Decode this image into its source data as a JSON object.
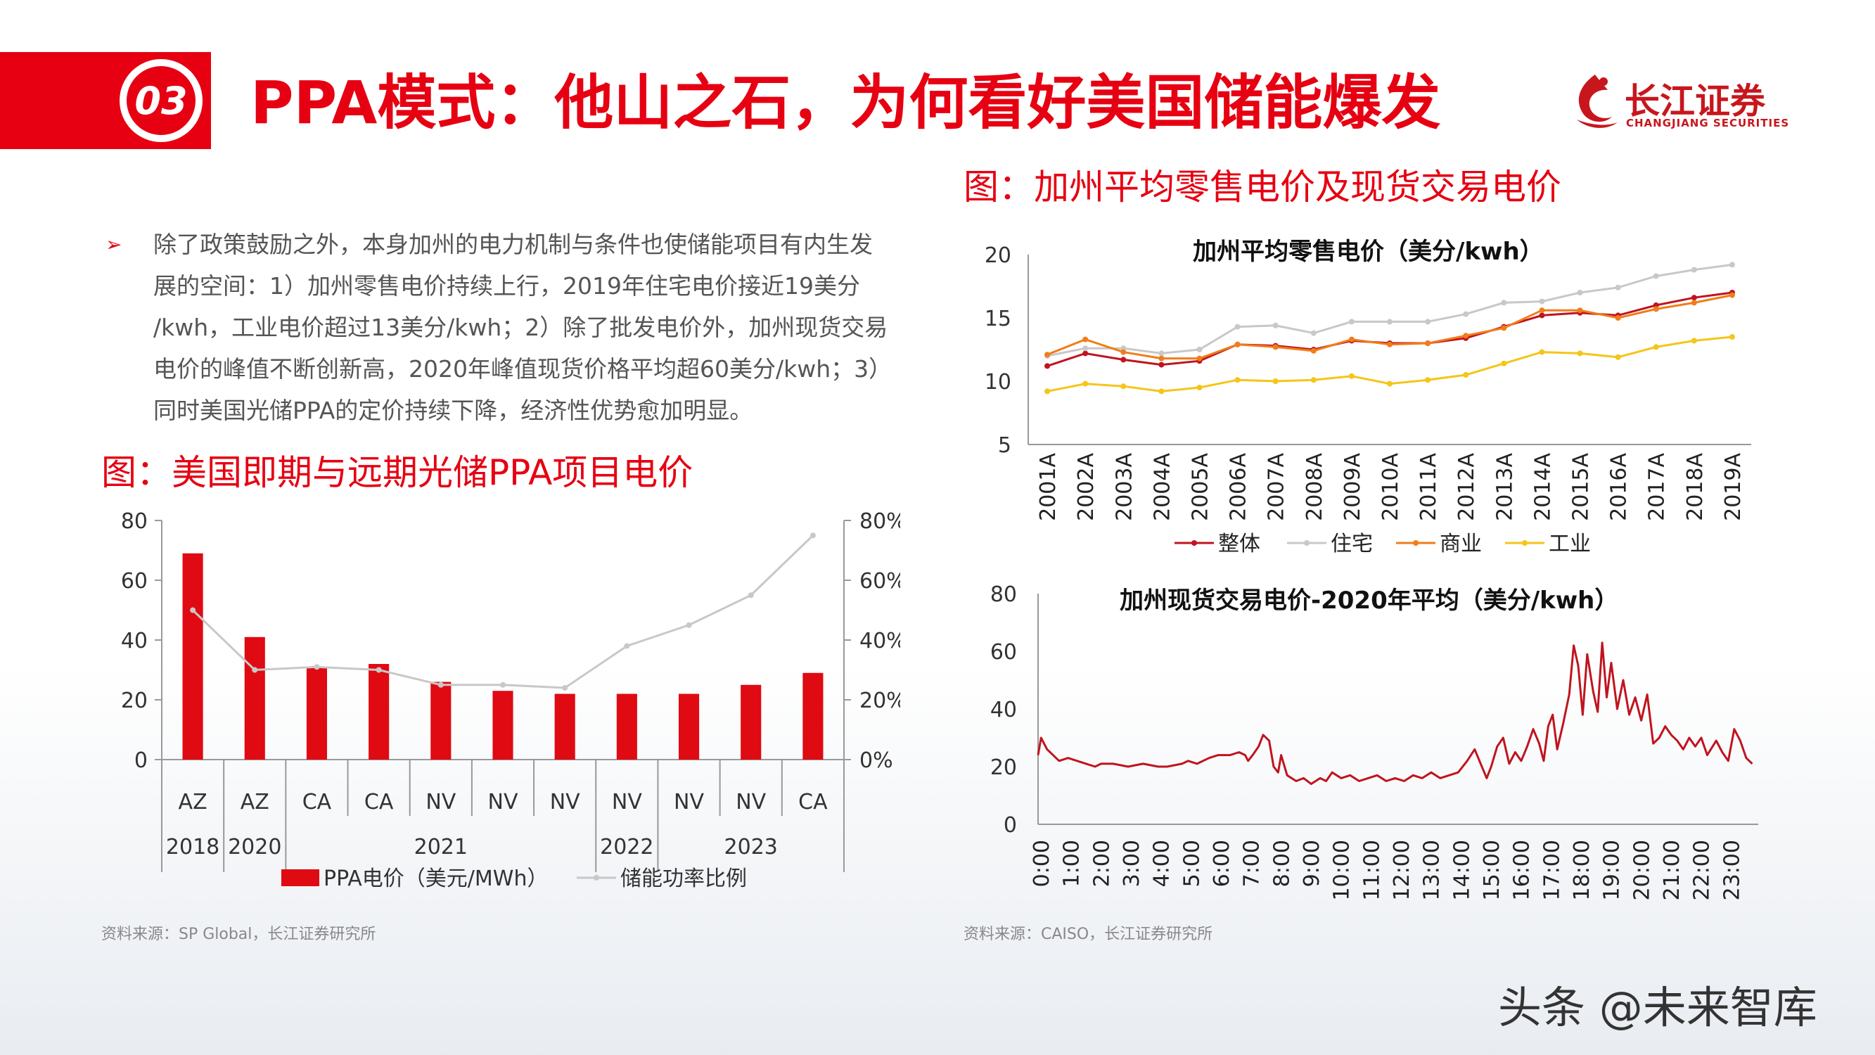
{
  "header": {
    "section_number": "03",
    "title": "PPA模式：他山之石，为何看好美国储能爆发"
  },
  "logo": {
    "name_cn": "长江证券",
    "name_en": "CHANGJIANG SECURITIES"
  },
  "bullet": {
    "lines": [
      "除了政策鼓励之外，本身加州的电力机制与条件也使储能项目有内生发",
      "展的空间：1）加州零售电价持续上行，2019年住宅电价接近19美分",
      "/kwh，工业电价超过13美分/kwh；2）除了批发电价外，加州现货交易",
      "电价的峰值不断创新高，2020年峰值现货价格平均超60美分/kwh；3）",
      "同时美国光储PPA的定价持续下降，经济性优势愈加明显。"
    ]
  },
  "figure_left": {
    "caption": "图：美国即期与远期光储PPA项目电价",
    "source": "资料来源：SP Global，长江证券研究所"
  },
  "figure_right_top": {
    "caption": "图：加州平均零售电价及现货交易电价"
  },
  "figure_right_bottom": {
    "source": "资料来源：CAISO，长江证券研究所"
  },
  "watermark": "头条 @未来智库",
  "colors": {
    "brand_red": "#e60012",
    "bar_red": "#e00a12",
    "line_grey": "#c8c8c8",
    "overall": "#c0141e",
    "residential": "#c8c8c8",
    "commercial": "#f07d1a",
    "industrial": "#f5c518",
    "spot": "#c0141e"
  },
  "chart_data": [
    {
      "type": "bar",
      "categories": [
        "AZ",
        "AZ",
        "CA",
        "CA",
        "NV",
        "NV",
        "NV",
        "NV",
        "NV",
        "NV",
        "CA"
      ],
      "year_groups": [
        {
          "label": "2018",
          "span": 1
        },
        {
          "label": "2020",
          "span": 1
        },
        {
          "label": "2021",
          "span": 5
        },
        {
          "label": "2022",
          "span": 1
        },
        {
          "label": "2023",
          "span": 3
        }
      ],
      "series": [
        {
          "name": "PPA电价（美元/MWh）",
          "type": "bar",
          "axis": "left",
          "values": [
            69,
            41,
            31,
            32,
            26,
            23,
            22,
            22,
            22,
            25,
            29
          ]
        },
        {
          "name": "储能功率比例",
          "type": "line",
          "axis": "right",
          "values": [
            50,
            30,
            31,
            30,
            25,
            25,
            24,
            38,
            45,
            55,
            75
          ]
        }
      ],
      "ylim": [
        0,
        80
      ],
      "yticks": [
        "0",
        "20",
        "40",
        "60",
        "80"
      ],
      "y2lim": [
        0,
        80
      ],
      "y2ticks": [
        "0%",
        "20%",
        "40%",
        "60%",
        "80%"
      ],
      "legend": "bottom"
    },
    {
      "type": "line",
      "title": "加州平均零售电价（美分/kwh）",
      "categories": [
        "2001A",
        "2002A",
        "2003A",
        "2004A",
        "2005A",
        "2006A",
        "2007A",
        "2008A",
        "2009A",
        "2010A",
        "2011A",
        "2012A",
        "2013A",
        "2014A",
        "2015A",
        "2016A",
        "2017A",
        "2018A",
        "2019A"
      ],
      "series": [
        {
          "name": "整体",
          "values": [
            11.2,
            12.2,
            11.7,
            11.3,
            11.6,
            12.9,
            12.8,
            12.5,
            13.2,
            13.0,
            13.0,
            13.4,
            14.3,
            15.2,
            15.4,
            15.2,
            16.0,
            16.6,
            17.0
          ]
        },
        {
          "name": "住宅",
          "values": [
            12.0,
            12.6,
            12.6,
            12.2,
            12.5,
            14.3,
            14.4,
            13.8,
            14.7,
            14.7,
            14.7,
            15.3,
            16.2,
            16.3,
            17.0,
            17.4,
            18.3,
            18.8,
            19.2
          ]
        },
        {
          "name": "商业",
          "values": [
            12.1,
            13.3,
            12.3,
            11.8,
            11.8,
            12.9,
            12.7,
            12.4,
            13.3,
            12.9,
            13.0,
            13.6,
            14.2,
            15.6,
            15.6,
            15.0,
            15.7,
            16.2,
            16.8
          ]
        },
        {
          "name": "工业",
          "values": [
            9.2,
            9.8,
            9.6,
            9.2,
            9.5,
            10.1,
            10.0,
            10.1,
            10.4,
            9.8,
            10.1,
            10.5,
            11.4,
            12.3,
            12.2,
            11.9,
            12.7,
            13.2,
            13.5
          ]
        }
      ],
      "ylim": [
        5,
        20
      ],
      "yticks": [
        "5",
        "10",
        "15",
        "20"
      ],
      "legend": "bottom"
    },
    {
      "type": "line",
      "title": "加州现货交易电价-2020年平均（美分/kwh）",
      "x_tick_labels": [
        "0:00",
        "1:00",
        "2:00",
        "3:00",
        "4:00",
        "5:00",
        "6:00",
        "7:00",
        "8:00",
        "9:00",
        "10:00",
        "11:00",
        "12:00",
        "13:00",
        "14:00",
        "15:00",
        "16:00",
        "17:00",
        "18:00",
        "19:00",
        "20:00",
        "21:00",
        "22:00",
        "23:00"
      ],
      "x": [
        0,
        0.1,
        0.3,
        0.5,
        0.7,
        1.0,
        1.3,
        1.6,
        1.9,
        2.1,
        2.5,
        3.0,
        3.5,
        4.0,
        4.3,
        4.8,
        5.0,
        5.3,
        5.7,
        6.0,
        6.4,
        6.7,
        6.9,
        7.0,
        7.15,
        7.35,
        7.5,
        7.7,
        7.85,
        8.0,
        8.1,
        8.3,
        8.6,
        8.85,
        9.1,
        9.4,
        9.6,
        9.8,
        10.1,
        10.4,
        10.7,
        11.0,
        11.3,
        11.6,
        11.9,
        12.2,
        12.5,
        12.8,
        13.1,
        13.4,
        13.7,
        14.0,
        14.3,
        14.55,
        14.75,
        14.95,
        15.1,
        15.3,
        15.5,
        15.7,
        15.9,
        16.1,
        16.3,
        16.5,
        16.7,
        16.85,
        17.0,
        17.15,
        17.3,
        17.5,
        17.7,
        17.85,
        18.0,
        18.15,
        18.3,
        18.5,
        18.65,
        18.8,
        18.95,
        19.1,
        19.3,
        19.5,
        19.7,
        19.9,
        20.1,
        20.3,
        20.5,
        20.7,
        20.9,
        21.1,
        21.3,
        21.5,
        21.7,
        21.9,
        22.1,
        22.3,
        22.6,
        22.8,
        23.0,
        23.2,
        23.4,
        23.6,
        23.8
      ],
      "values": [
        24,
        30,
        26,
        24,
        22,
        23,
        22,
        21,
        20,
        21,
        21,
        20,
        21,
        20,
        20,
        21,
        22,
        21,
        23,
        24,
        24,
        25,
        24,
        22,
        24,
        27,
        31,
        29,
        20,
        18,
        24,
        17,
        15,
        16,
        14,
        16,
        15,
        18,
        16,
        17,
        15,
        16,
        17,
        15,
        16,
        15,
        17,
        16,
        18,
        16,
        17,
        18,
        22,
        26,
        21,
        16,
        20,
        27,
        30,
        21,
        25,
        22,
        27,
        33,
        28,
        22,
        34,
        38,
        26,
        35,
        45,
        62,
        55,
        38,
        59,
        46,
        39,
        63,
        44,
        56,
        40,
        50,
        38,
        44,
        36,
        45,
        28,
        30,
        34,
        31,
        29,
        26,
        30,
        27,
        30,
        24,
        29,
        25,
        22,
        33,
        29,
        23,
        21
      ],
      "ylim": [
        0,
        80
      ],
      "yticks": [
        "0",
        "20",
        "40",
        "60",
        "80"
      ]
    }
  ]
}
